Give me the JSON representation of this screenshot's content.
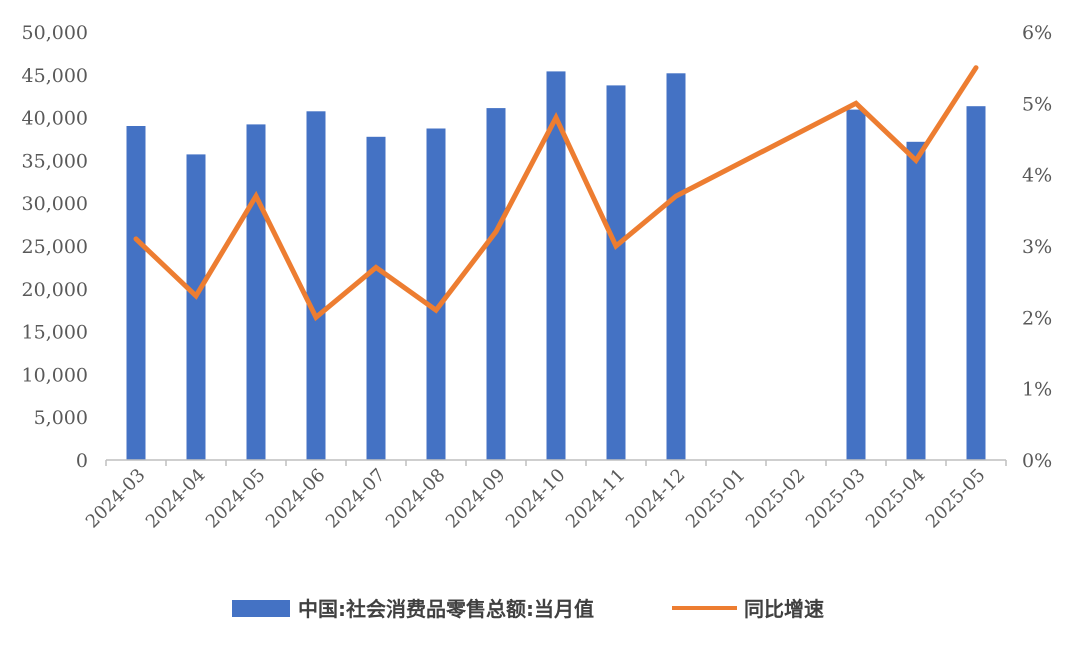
{
  "chart_data": {
    "type": "bar",
    "categories": [
      "2024-03",
      "2024-04",
      "2024-05",
      "2024-06",
      "2024-07",
      "2024-08",
      "2024-09",
      "2024-10",
      "2024-11",
      "2024-12",
      "2025-01",
      "2025-02",
      "2025-03",
      "2025-04",
      "2025-05"
    ],
    "series": [
      {
        "name": "中国:社会消费品零售总额:当月值",
        "type": "bar",
        "axis": "left",
        "color": "#4472C4",
        "values": [
          39020,
          35699,
          39211,
          40732,
          37757,
          38726,
          41112,
          45396,
          43763,
          45172,
          null,
          null,
          40940,
          37174,
          41326
        ]
      },
      {
        "name": "同比增速",
        "type": "line",
        "axis": "right",
        "color": "#ED7D31",
        "values": [
          3.1,
          2.3,
          3.7,
          2.0,
          2.7,
          2.1,
          3.2,
          4.8,
          3.0,
          3.7,
          null,
          null,
          5.0,
          4.2,
          5.5
        ]
      }
    ],
    "y_left": {
      "min": 0,
      "max": 50000,
      "step": 5000,
      "tick_labels": [
        "0",
        "5,000",
        "10,000",
        "15,000",
        "20,000",
        "25,000",
        "30,000",
        "35,000",
        "40,000",
        "45,000",
        "50,000"
      ]
    },
    "y_right": {
      "min": 0,
      "max": 6,
      "step": 1,
      "tick_labels": [
        "0%",
        "1%",
        "2%",
        "3%",
        "4%",
        "5%",
        "6%"
      ]
    },
    "legend_position": "bottom",
    "grid": false
  }
}
